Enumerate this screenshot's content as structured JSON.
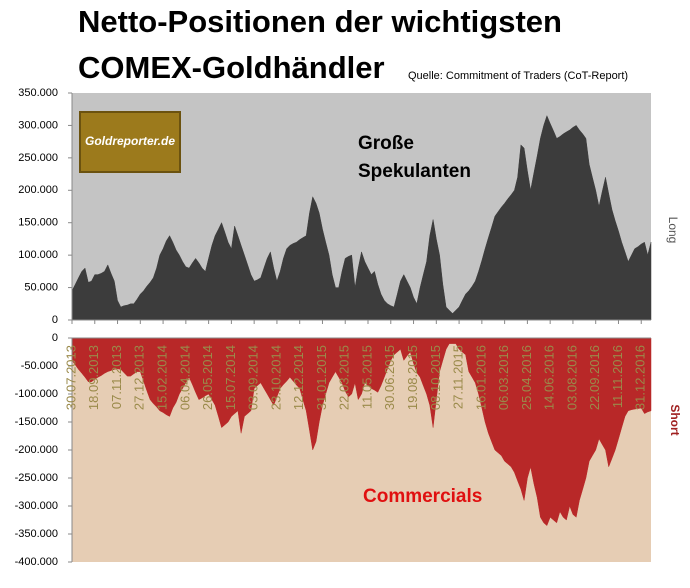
{
  "header": {
    "title": [
      "Netto-Positionen der wichtigsten",
      "COMEX-Goldhändler"
    ],
    "source": "Quelle: Commitment of Traders (CoT-Report)",
    "logo": "Goldreporter.de"
  },
  "chart_data": [
    {
      "type": "area",
      "y_label": "Long",
      "annotation": [
        "Große",
        "Spekulanten"
      ],
      "background": "#c4c4c4",
      "series": [
        {
          "color": "#3c3c3c",
          "values": [
            45000,
            55000,
            65000,
            75000,
            80000,
            58000,
            60000,
            70000,
            70000,
            72000,
            75000,
            85000,
            72000,
            60000,
            30000,
            20000,
            22000,
            23000,
            25000,
            25000,
            32000,
            40000,
            45000,
            52000,
            58000,
            65000,
            80000,
            100000,
            110000,
            122000,
            130000,
            120000,
            108000,
            100000,
            90000,
            82000,
            80000,
            88000,
            95000,
            88000,
            80000,
            75000,
            95000,
            115000,
            130000,
            140000,
            150000,
            135000,
            120000,
            110000,
            145000,
            130000,
            115000,
            100000,
            85000,
            70000,
            60000,
            62000,
            65000,
            80000,
            95000,
            105000,
            80000,
            60000,
            75000,
            95000,
            110000,
            115000,
            118000,
            120000,
            124000,
            127000,
            130000,
            165000,
            190000,
            180000,
            165000,
            140000,
            120000,
            100000,
            70000,
            50000,
            50000,
            75000,
            95000,
            98000,
            100000,
            50000,
            80000,
            105000,
            90000,
            80000,
            70000,
            75000,
            55000,
            40000,
            30000,
            25000,
            22000,
            20000,
            40000,
            60000,
            70000,
            60000,
            50000,
            35000,
            25000,
            50000,
            70000,
            90000,
            130000,
            155000,
            125000,
            100000,
            55000,
            20000,
            15000,
            10000,
            15000,
            20000,
            30000,
            40000,
            45000,
            52000,
            60000,
            75000,
            92000,
            110000,
            127000,
            143000,
            160000,
            167000,
            174000,
            180000,
            187000,
            193000,
            200000,
            220000,
            270000,
            265000,
            230000,
            200000,
            227000,
            253000,
            280000,
            300000,
            315000,
            303000,
            292000,
            280000,
            283000,
            287000,
            290000,
            293000,
            297000,
            300000,
            293000,
            287000,
            280000,
            240000,
            220000,
            200000,
            175000,
            198000,
            220000,
            195000,
            170000,
            153000,
            137000,
            120000,
            105000,
            90000,
            100000,
            110000,
            113000,
            117000,
            120000,
            100000,
            120000
          ]
        }
      ],
      "ylim": [
        0,
        350000
      ],
      "yticks": [
        0,
        {
          "value": 50000,
          "label": "50.000"
        },
        {
          "value": 100000,
          "label": "100.000"
        },
        {
          "value": 150000,
          "label": "150.000"
        },
        {
          "value": 200000,
          "label": "200.000"
        },
        {
          "value": 250000,
          "label": "250.000"
        },
        {
          "value": 300000,
          "label": "300.000"
        },
        {
          "value": 350000,
          "label": "350.000"
        }
      ]
    },
    {
      "type": "area",
      "y_label": "Short",
      "annotation": [
        "Commercials"
      ],
      "background": "#e6cdb4",
      "categories": [
        "30.07.2013",
        null,
        null,
        null,
        null,
        null,
        null,
        "18.09.2013",
        null,
        null,
        null,
        null,
        null,
        null,
        "07.11.2013",
        null,
        null,
        null,
        null,
        null,
        null,
        "27.12.2013",
        null,
        null,
        null,
        null,
        null,
        null,
        "15.02.2014",
        null,
        null,
        null,
        null,
        null,
        null,
        "06.04.2014",
        null,
        null,
        null,
        null,
        null,
        null,
        "26.05.2014",
        null,
        null,
        null,
        null,
        null,
        null,
        "15.07.2014",
        null,
        null,
        null,
        null,
        null,
        null,
        "03.09.2014",
        null,
        null,
        null,
        null,
        null,
        null,
        "23.10.2014",
        null,
        null,
        null,
        null,
        null,
        null,
        "12.12.2014",
        null,
        null,
        null,
        null,
        null,
        null,
        "31.01.2015",
        null,
        null,
        null,
        null,
        null,
        null,
        "22.03.2015",
        null,
        null,
        null,
        null,
        null,
        null,
        "11.05.2015",
        null,
        null,
        null,
        null,
        null,
        null,
        "30.06.2015",
        null,
        null,
        null,
        null,
        null,
        null,
        "19.08.2015",
        null,
        null,
        null,
        null,
        null,
        null,
        "08.10.2015",
        null,
        null,
        null,
        null,
        null,
        null,
        "27.11.2015",
        null,
        null,
        null,
        null,
        null,
        null,
        "16.01.2016",
        null,
        null,
        null,
        null,
        null,
        null,
        "06.03.2016",
        null,
        null,
        null,
        null,
        null,
        null,
        "25.04.2016",
        null,
        null,
        null,
        null,
        null,
        null,
        "14.06.2016",
        null,
        null,
        null,
        null,
        null,
        null,
        "03.08.2016",
        null,
        null,
        null,
        null,
        null,
        null,
        "22.09.2016",
        null,
        null,
        null,
        null,
        null,
        null,
        "11.11.2016",
        null,
        null,
        null,
        null,
        null,
        null,
        "31.12.2016",
        null,
        null,
        null
      ],
      "series": [
        {
          "color": "#b82828",
          "values": [
            -40000,
            -48000,
            -56000,
            -63000,
            -70000,
            -78000,
            -78000,
            -74000,
            -70000,
            -67000,
            -63000,
            -60000,
            -58000,
            -56000,
            -55000,
            -56000,
            -62000,
            -68000,
            -68000,
            -64000,
            -60000,
            -60000,
            -77000,
            -94000,
            -110000,
            -117000,
            -123000,
            -130000,
            -133000,
            -137000,
            -140000,
            -125000,
            -115000,
            -100000,
            -90000,
            -80000,
            -70000,
            -83000,
            -97000,
            -110000,
            -107000,
            -103000,
            -100000,
            -110000,
            -120000,
            -140000,
            -160000,
            -155000,
            -150000,
            -140000,
            -135000,
            -130000,
            -170000,
            -140000,
            -135000,
            -130000,
            -90000,
            -85000,
            -80000,
            -90000,
            -100000,
            -110000,
            -120000,
            -105000,
            -90000,
            -83000,
            -77000,
            -70000,
            -77000,
            -84000,
            -90000,
            -110000,
            -130000,
            -165000,
            -200000,
            -185000,
            -150000,
            -120000,
            -100000,
            -80000,
            -70000,
            -60000,
            -70000,
            -80000,
            -95000,
            -105000,
            -100000,
            -80000,
            -110000,
            -100000,
            -80000,
            -85000,
            -90000,
            -93000,
            -97000,
            -85000,
            -70000,
            -55000,
            -40000,
            -30000,
            -25000,
            -20000,
            -40000,
            -32000,
            -25000,
            -45000,
            -62000,
            -70000,
            -85000,
            -100000,
            -120000,
            -160000,
            -110000,
            -60000,
            -40000,
            -20000,
            -10000,
            -10000,
            -10000,
            -20000,
            -25000,
            -30000,
            -60000,
            -70000,
            -80000,
            -100000,
            -125000,
            -150000,
            -170000,
            -185000,
            -200000,
            -205000,
            -210000,
            -220000,
            -225000,
            -230000,
            -240000,
            -255000,
            -270000,
            -290000,
            -250000,
            -230000,
            -260000,
            -285000,
            -320000,
            -330000,
            -335000,
            -320000,
            -325000,
            -330000,
            -310000,
            -320000,
            -325000,
            -300000,
            -315000,
            -320000,
            -290000,
            -270000,
            -250000,
            -220000,
            -210000,
            -200000,
            -180000,
            -190000,
            -200000,
            -230000,
            -215000,
            -200000,
            -180000,
            -160000,
            -140000,
            -130000,
            -128000,
            -127000,
            -126000,
            -125000,
            -135000,
            -132000,
            -130000
          ]
        }
      ],
      "ylim": [
        -400000,
        0
      ],
      "yticks": [
        0,
        {
          "value": -50000,
          "label": "-50.000"
        },
        {
          "value": -100000,
          "label": "-100.000"
        },
        {
          "value": -150000,
          "label": "-150.000"
        },
        {
          "value": -200000,
          "label": "-200.000"
        },
        {
          "value": -250000,
          "label": "-250.000"
        },
        {
          "value": -300000,
          "label": "-300.000"
        },
        {
          "value": -350000,
          "label": "-350.000"
        },
        {
          "value": -400000,
          "label": "-400.000"
        }
      ]
    }
  ]
}
